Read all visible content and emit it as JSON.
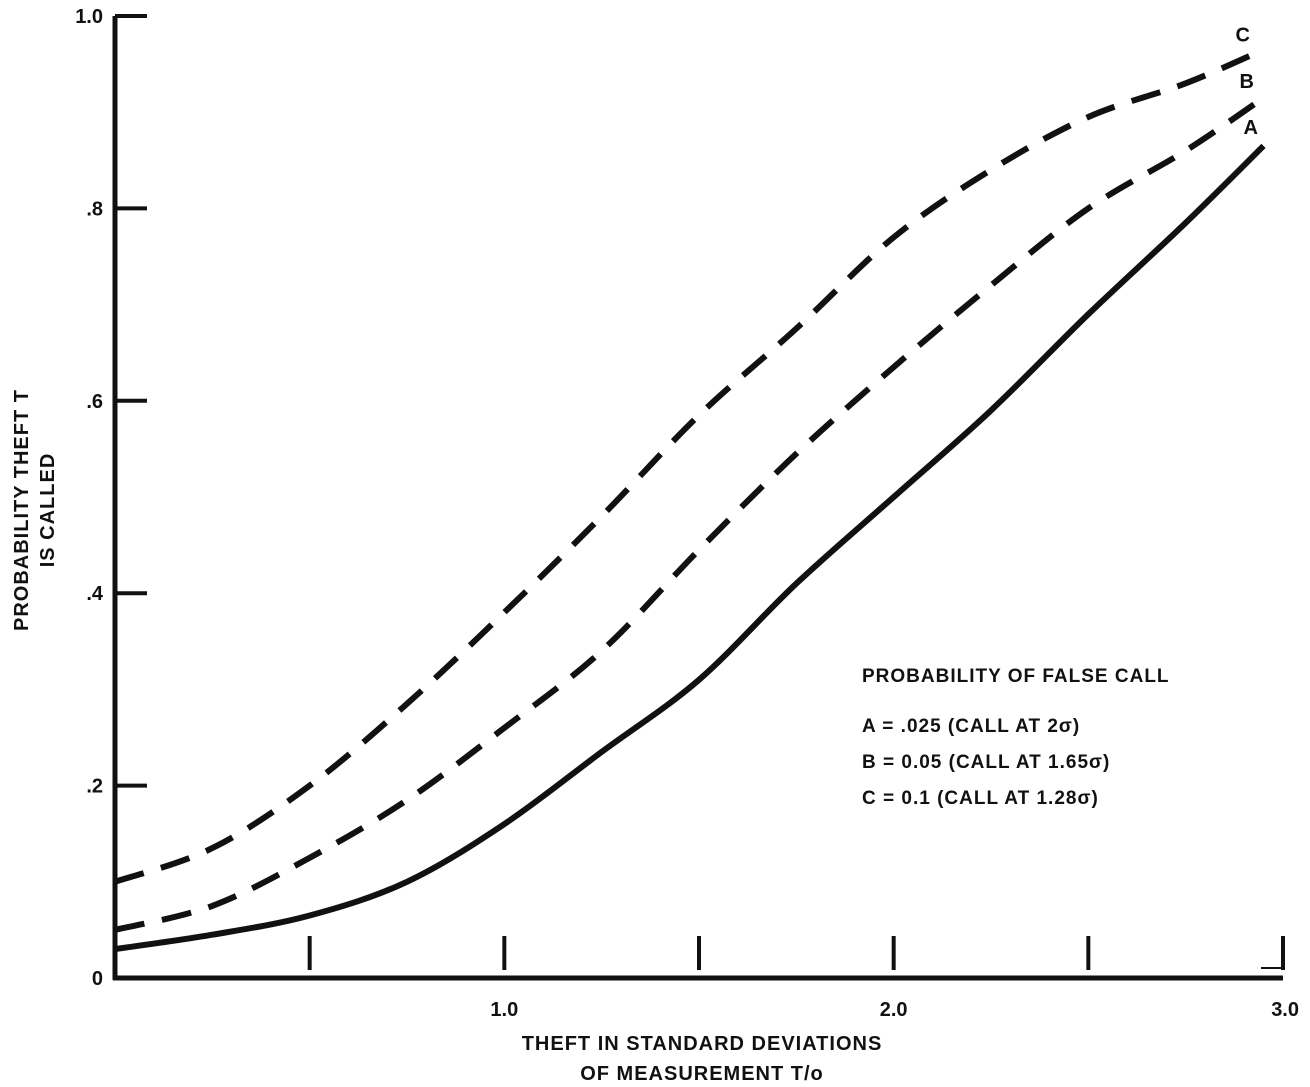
{
  "chart_data": {
    "type": "line",
    "xlabel_lines": [
      "THEFT IN STANDARD DEVIATIONS",
      "OF MEASUREMENT T/o"
    ],
    "ylabel_lines": [
      "PROBABILITY THEFT T",
      "IS CALLED"
    ],
    "xlim": [
      0,
      3.0
    ],
    "ylim": [
      0,
      1.0
    ],
    "x_tick_values": [
      0.5,
      1.0,
      1.5,
      2.0,
      2.5,
      3.0
    ],
    "x_tick_labels": [
      {
        "value": 1.0,
        "label": "1.0"
      },
      {
        "value": 2.0,
        "label": "2.0"
      },
      {
        "value": 3.0,
        "label": "3.0"
      }
    ],
    "y_ticks": [
      {
        "value": 0,
        "label": "0"
      },
      {
        "value": 0.2,
        "label": ".2"
      },
      {
        "value": 0.4,
        "label": ".4"
      },
      {
        "value": 0.6,
        "label": ".6"
      },
      {
        "value": 0.8,
        "label": ".8"
      },
      {
        "value": 1.0,
        "label": "1.0"
      }
    ],
    "grid": false,
    "legend_title": "PROBABILITY OF FALSE CALL",
    "legend_entries": [
      "A =  .025 (CALL AT 2σ)",
      "B = 0.05 (CALL AT 1.65σ)",
      "C = 0.1 (CALL AT 1.28σ)"
    ],
    "legend_position": "lower-right",
    "series": [
      {
        "name": "A",
        "style": "solid",
        "x": [
          0,
          0.25,
          0.5,
          0.75,
          1.0,
          1.25,
          1.5,
          1.75,
          2.0,
          2.25,
          2.5,
          2.75,
          2.95
        ],
        "y": [
          0.03,
          0.045,
          0.065,
          0.1,
          0.16,
          0.235,
          0.31,
          0.41,
          0.5,
          0.59,
          0.69,
          0.785,
          0.865
        ]
      },
      {
        "name": "B",
        "style": "dashed",
        "x": [
          0,
          0.25,
          0.5,
          0.75,
          1.0,
          1.25,
          1.5,
          1.75,
          2.0,
          2.25,
          2.5,
          2.75,
          2.95
        ],
        "y": [
          0.05,
          0.075,
          0.125,
          0.185,
          0.26,
          0.34,
          0.445,
          0.545,
          0.635,
          0.72,
          0.8,
          0.86,
          0.915
        ]
      },
      {
        "name": "C",
        "style": "dashed",
        "x": [
          0,
          0.25,
          0.5,
          0.75,
          1.0,
          1.25,
          1.5,
          1.75,
          2.0,
          2.25,
          2.5,
          2.75,
          2.95
        ],
        "y": [
          0.1,
          0.135,
          0.2,
          0.285,
          0.38,
          0.48,
          0.585,
          0.675,
          0.77,
          0.84,
          0.895,
          0.93,
          0.965
        ]
      }
    ]
  }
}
